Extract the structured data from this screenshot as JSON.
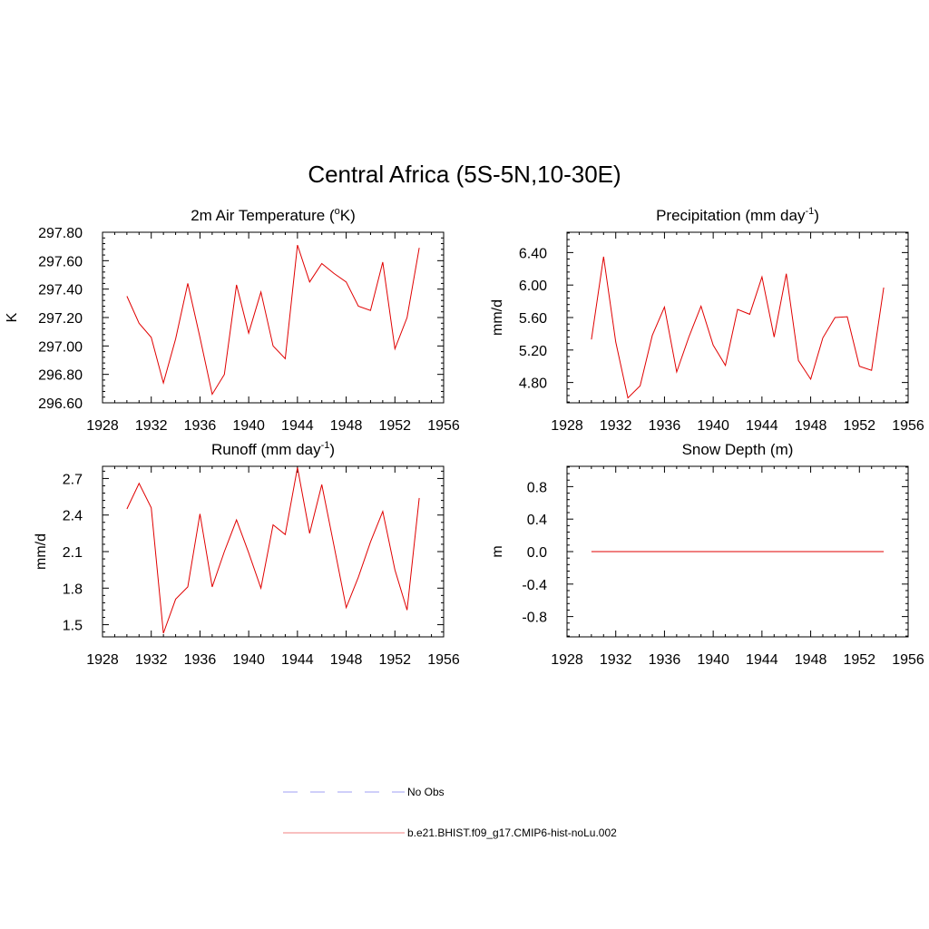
{
  "title": "Central Africa (5S-5N,10-30E)",
  "colors": {
    "model": "#e00000",
    "obs": "#9f9ff5",
    "axis": "#000000"
  },
  "legend": {
    "obs_label": "No Obs",
    "model_label": "b.e21.BHIST.f09_g17.CMIP6-hist-noLu.002"
  },
  "chart_data": [
    {
      "type": "line",
      "title_main": "2m Air Temperature (",
      "title_sup_pre": "o",
      "title_rest": "K)",
      "ylabel": "K",
      "xlim": [
        1928,
        1956
      ],
      "ylim": [
        296.6,
        297.8
      ],
      "x_ticks": [
        1928,
        1932,
        1936,
        1940,
        1944,
        1948,
        1952,
        1956
      ],
      "y_ticks": [
        296.6,
        296.8,
        297.0,
        297.2,
        297.4,
        297.6,
        297.8
      ],
      "y_tick_labels": [
        "296.60",
        "296.80",
        "297.00",
        "297.20",
        "297.40",
        "297.60",
        "297.80"
      ],
      "series": [
        {
          "x": [
            1930,
            1931,
            1932,
            1933,
            1934,
            1935,
            1936,
            1937,
            1938,
            1939,
            1940,
            1941,
            1942,
            1943,
            1944,
            1945,
            1946,
            1947,
            1948,
            1949,
            1950,
            1951,
            1952,
            1953,
            1954
          ],
          "values": [
            297.35,
            297.16,
            297.06,
            296.74,
            297.05,
            297.44,
            297.06,
            296.66,
            296.8,
            297.43,
            297.09,
            297.38,
            297.0,
            296.91,
            297.71,
            297.45,
            297.58,
            297.51,
            297.45,
            297.28,
            297.25,
            297.59,
            296.98,
            297.2,
            297.69
          ]
        }
      ]
    },
    {
      "type": "line",
      "title_main": "Precipitation (mm day",
      "title_sup_post": "-1",
      "title_rest": ")",
      "ylabel": "mm/d",
      "xlim": [
        1928,
        1956
      ],
      "ylim": [
        4.55,
        6.65
      ],
      "x_ticks": [
        1928,
        1932,
        1936,
        1940,
        1944,
        1948,
        1952,
        1956
      ],
      "y_ticks": [
        4.8,
        5.2,
        5.6,
        6.0,
        6.4
      ],
      "y_tick_labels": [
        "4.80",
        "5.20",
        "5.60",
        "6.00",
        "6.40"
      ],
      "series": [
        {
          "x": [
            1930,
            1931,
            1932,
            1933,
            1934,
            1935,
            1936,
            1937,
            1938,
            1939,
            1940,
            1941,
            1942,
            1943,
            1944,
            1945,
            1946,
            1947,
            1948,
            1949,
            1950,
            1951,
            1952,
            1953,
            1954
          ],
          "values": [
            5.33,
            6.35,
            5.3,
            4.61,
            4.76,
            5.38,
            5.73,
            4.93,
            5.36,
            5.74,
            5.26,
            5.01,
            5.7,
            5.64,
            6.1,
            5.36,
            6.14,
            5.07,
            4.84,
            5.35,
            5.6,
            5.61,
            5.0,
            4.95,
            5.97
          ]
        }
      ]
    },
    {
      "type": "line",
      "title_main": "Runoff (mm day",
      "title_sup_post": "-1",
      "title_rest": ")",
      "ylabel": "mm/d",
      "xlim": [
        1928,
        1956
      ],
      "ylim": [
        1.4,
        2.8
      ],
      "x_ticks": [
        1928,
        1932,
        1936,
        1940,
        1944,
        1948,
        1952,
        1956
      ],
      "y_ticks": [
        1.5,
        1.8,
        2.1,
        2.4,
        2.7
      ],
      "y_tick_labels": [
        "1.5",
        "1.8",
        "2.1",
        "2.4",
        "2.7"
      ],
      "series": [
        {
          "x": [
            1930,
            1931,
            1932,
            1933,
            1934,
            1935,
            1936,
            1937,
            1938,
            1939,
            1940,
            1941,
            1942,
            1943,
            1944,
            1945,
            1946,
            1947,
            1948,
            1949,
            1950,
            1951,
            1952,
            1953,
            1954
          ],
          "values": [
            2.45,
            2.66,
            2.46,
            1.43,
            1.71,
            1.81,
            2.41,
            1.81,
            2.1,
            2.36,
            2.09,
            1.8,
            2.32,
            2.24,
            2.79,
            2.25,
            2.65,
            2.15,
            1.64,
            1.89,
            2.18,
            2.43,
            1.95,
            1.62,
            2.54
          ]
        }
      ]
    },
    {
      "type": "line",
      "title_main": "Snow Depth (m)",
      "ylabel": "m",
      "xlim": [
        1928,
        1956
      ],
      "ylim": [
        -1.05,
        1.05
      ],
      "x_ticks": [
        1928,
        1932,
        1936,
        1940,
        1944,
        1948,
        1952,
        1956
      ],
      "y_ticks": [
        -0.8,
        -0.4,
        0.0,
        0.4,
        0.8
      ],
      "y_tick_labels": [
        "-0.8",
        "-0.4",
        "0.0",
        "0.4",
        "0.8"
      ],
      "series": [
        {
          "x": [
            1930,
            1931,
            1932,
            1933,
            1934,
            1935,
            1936,
            1937,
            1938,
            1939,
            1940,
            1941,
            1942,
            1943,
            1944,
            1945,
            1946,
            1947,
            1948,
            1949,
            1950,
            1951,
            1952,
            1953,
            1954
          ],
          "values": [
            0,
            0,
            0,
            0,
            0,
            0,
            0,
            0,
            0,
            0,
            0,
            0,
            0,
            0,
            0,
            0,
            0,
            0,
            0,
            0,
            0,
            0,
            0,
            0,
            0
          ]
        }
      ]
    }
  ]
}
